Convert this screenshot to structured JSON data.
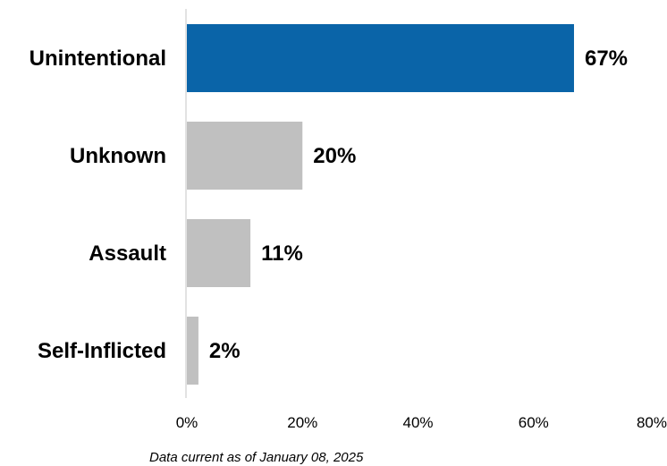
{
  "chart_data": {
    "type": "bar",
    "orientation": "horizontal",
    "categories": [
      "Unintentional",
      "Unknown",
      "Assault",
      "Self-Inflicted"
    ],
    "values": [
      67,
      20,
      11,
      2
    ],
    "data_labels": [
      "67%",
      "20%",
      "11%",
      "2%"
    ],
    "xlim": [
      0,
      80
    ],
    "x_ticks": [
      0,
      20,
      40,
      60,
      80
    ],
    "x_tick_labels": [
      "0%",
      "20%",
      "40%",
      "60%",
      "80%"
    ],
    "title": "",
    "xlabel": "",
    "ylabel": "",
    "grid": false,
    "legend": "none",
    "colors": {
      "highlight": "#0a64a8",
      "default": "#c0c0c0",
      "axis": "#d9d9d9"
    },
    "highlight_index": 0
  },
  "footnote": "Data current as of January 08, 2025"
}
